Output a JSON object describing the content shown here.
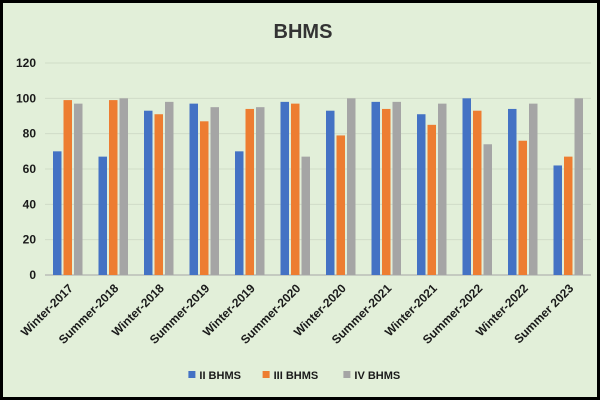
{
  "chart_data": {
    "type": "bar",
    "title": "BHMS",
    "xlabel": "",
    "ylabel": "",
    "ylim": [
      0,
      120
    ],
    "yticks": [
      0,
      20,
      40,
      60,
      80,
      100,
      120
    ],
    "grid": true,
    "legend_position": "bottom",
    "categories": [
      "Winter-2017",
      "Summer-2018",
      "Winter-2018",
      "Summer-2019",
      "Winter-2019",
      "Summer-2020",
      "Winter-2020",
      "Summer-2021",
      "Winter-2021",
      "Summer-2022",
      "Winter-2022",
      "Summer 2023"
    ],
    "series": [
      {
        "name": "II BHMS",
        "color": "#4472c4",
        "values": [
          70,
          67,
          93,
          97,
          70,
          98,
          93,
          98,
          91,
          100,
          94,
          62
        ]
      },
      {
        "name": "III BHMS",
        "color": "#ed7d31",
        "values": [
          99,
          99,
          91,
          87,
          94,
          97,
          79,
          94,
          85,
          93,
          76,
          67
        ]
      },
      {
        "name": "IV BHMS",
        "color": "#a5a5a5",
        "values": [
          97,
          100,
          98,
          95,
          95,
          67,
          100,
          98,
          97,
          74,
          97,
          100
        ]
      }
    ]
  }
}
